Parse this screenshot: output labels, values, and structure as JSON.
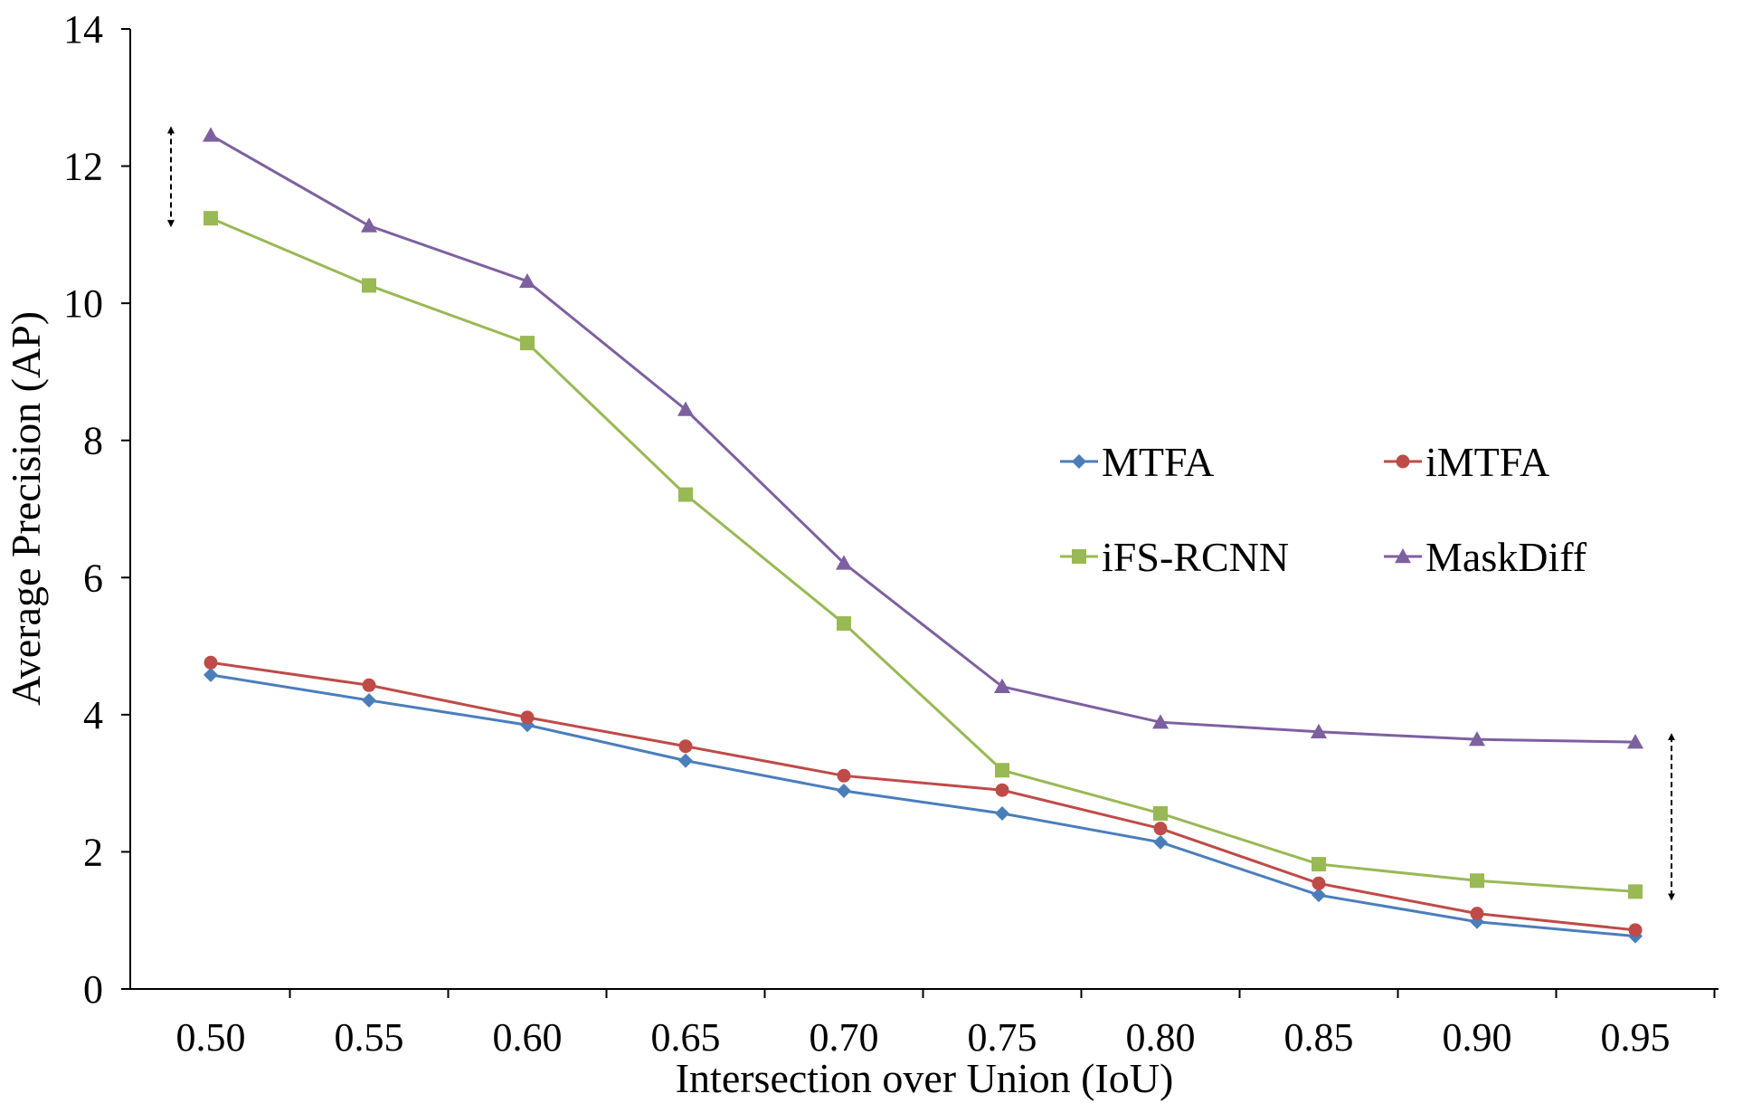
{
  "chart_data": {
    "type": "line",
    "title": "",
    "xlabel": "Intersection over Union (IoU)",
    "ylabel": "Average Precision (AP)",
    "x": [
      "0.50",
      "0.55",
      "0.60",
      "0.65",
      "0.70",
      "0.75",
      "0.80",
      "0.85",
      "0.90",
      "0.95"
    ],
    "ylim": [
      0,
      14
    ],
    "yticks": [
      "0",
      "2",
      "4",
      "6",
      "8",
      "10",
      "12",
      "14"
    ],
    "grid": false,
    "legend_position": "center-right",
    "series": [
      {
        "name": "MTFA",
        "color": "#4a7ebb",
        "marker": "diamond",
        "values": [
          4.58,
          4.21,
          3.85,
          3.33,
          2.89,
          2.56,
          2.14,
          1.37,
          0.98,
          0.77
        ]
      },
      {
        "name": "iMTFA",
        "color": "#be4b48",
        "marker": "circle",
        "values": [
          4.76,
          4.43,
          3.96,
          3.54,
          3.11,
          2.9,
          2.34,
          1.54,
          1.1,
          0.86
        ]
      },
      {
        "name": "iFS-RCNN",
        "color": "#98b954",
        "marker": "square",
        "values": [
          11.24,
          10.26,
          9.42,
          7.21,
          5.33,
          3.19,
          2.56,
          1.82,
          1.58,
          1.42
        ]
      },
      {
        "name": "MaskDiff",
        "color": "#7d60a0",
        "marker": "triangle",
        "values": [
          12.45,
          11.13,
          10.32,
          8.45,
          6.21,
          4.41,
          3.89,
          3.75,
          3.64,
          3.6
        ]
      }
    ],
    "annotations": [
      {
        "type": "double-arrow",
        "x": "0.50",
        "y_from": 11.24,
        "y_to": 12.45,
        "style": "dashed",
        "side": "left"
      },
      {
        "type": "double-arrow",
        "x": "0.95",
        "y_from": 1.42,
        "y_to": 3.6,
        "style": "dashed",
        "side": "right"
      }
    ]
  }
}
